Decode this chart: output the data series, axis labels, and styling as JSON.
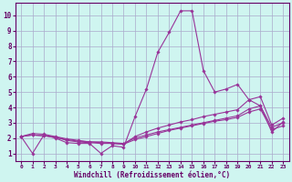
{
  "xlabel": "Windchill (Refroidissement éolien,°C)",
  "bg_color": "#cff5f0",
  "grid_color": "#aaaacc",
  "line_color": "#993399",
  "xlim": [
    -0.5,
    23.5
  ],
  "ylim": [
    0.5,
    10.8
  ],
  "xticks": [
    0,
    1,
    2,
    3,
    4,
    5,
    6,
    7,
    8,
    9,
    10,
    11,
    12,
    13,
    14,
    15,
    16,
    17,
    18,
    19,
    20,
    21,
    22,
    23
  ],
  "yticks": [
    1,
    2,
    3,
    4,
    5,
    6,
    7,
    8,
    9,
    10
  ],
  "series": [
    {
      "x": [
        0,
        1,
        2,
        3,
        4,
        5,
        6,
        7,
        8,
        9,
        10,
        11,
        12,
        13,
        14,
        15,
        16,
        17,
        18,
        19,
        20,
        21,
        22,
        23
      ],
      "y": [
        2.1,
        1.0,
        2.2,
        2.0,
        1.7,
        1.65,
        1.65,
        1.0,
        1.5,
        1.4,
        3.4,
        5.2,
        7.6,
        8.9,
        10.3,
        10.3,
        6.4,
        5.0,
        5.2,
        5.5,
        4.5,
        4.1,
        2.4,
        3.05
      ]
    },
    {
      "x": [
        0,
        1,
        2,
        3,
        4,
        5,
        6,
        7,
        8,
        9,
        10,
        11,
        12,
        13,
        14,
        15,
        16,
        17,
        18,
        19,
        20,
        21,
        22,
        23
      ],
      "y": [
        2.1,
        2.3,
        2.25,
        2.1,
        1.95,
        1.85,
        1.75,
        1.7,
        1.65,
        1.6,
        2.1,
        2.4,
        2.65,
        2.85,
        3.05,
        3.2,
        3.4,
        3.55,
        3.7,
        3.85,
        4.5,
        4.7,
        2.85,
        3.3
      ]
    },
    {
      "x": [
        0,
        1,
        2,
        3,
        4,
        5,
        6,
        7,
        8,
        9,
        10,
        11,
        12,
        13,
        14,
        15,
        16,
        17,
        18,
        19,
        20,
        21,
        22,
        23
      ],
      "y": [
        2.1,
        2.2,
        2.15,
        2.05,
        1.9,
        1.8,
        1.75,
        1.75,
        1.7,
        1.65,
        2.0,
        2.2,
        2.4,
        2.55,
        2.7,
        2.85,
        3.0,
        3.15,
        3.3,
        3.45,
        3.9,
        4.1,
        2.7,
        3.0
      ]
    },
    {
      "x": [
        0,
        1,
        2,
        3,
        4,
        5,
        6,
        7,
        8,
        9,
        10,
        11,
        12,
        13,
        14,
        15,
        16,
        17,
        18,
        19,
        20,
        21,
        22,
        23
      ],
      "y": [
        2.1,
        2.2,
        2.15,
        2.05,
        1.85,
        1.75,
        1.7,
        1.65,
        1.65,
        1.6,
        1.9,
        2.1,
        2.3,
        2.5,
        2.65,
        2.8,
        2.95,
        3.1,
        3.2,
        3.35,
        3.7,
        3.9,
        2.55,
        2.8
      ]
    }
  ]
}
